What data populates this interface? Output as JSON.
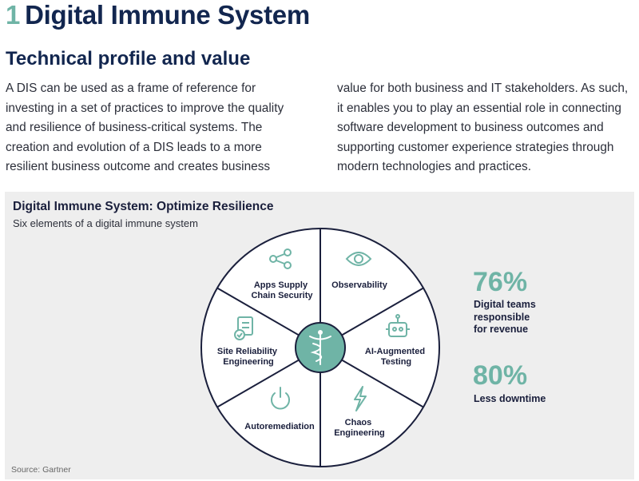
{
  "header": {
    "number": "1",
    "title": "Digital Immune System",
    "subtitle": "Technical profile and value"
  },
  "body": {
    "col1_lines": [
      "A DIS can be used as a frame of reference for",
      "investing in a set of practices to improve the quality",
      "and resilience of business-critical systems. The",
      "creation and evolution of a DIS leads to a more",
      "resilient business outcome and creates business"
    ],
    "col2_lines": [
      "value for both business and IT stakeholders. As such,",
      "it enables you to play an essential role in connecting",
      "software development to business outcomes and",
      "supporting customer experience strategies through",
      "modern technologies and practices."
    ]
  },
  "figure": {
    "title": "Digital Immune System: Optimize Resilience",
    "subtitle": "Six elements of a digital immune system",
    "source": "Source: Gartner",
    "colors": {
      "accent": "#6fb4a6",
      "ring": "#1a1f3c",
      "panel": "#eeeeee"
    },
    "segments": [
      {
        "icon": "share-icon",
        "lines": [
          "Apps Supply",
          "Chain Security"
        ]
      },
      {
        "icon": "eye-icon",
        "lines": [
          "Observability"
        ]
      },
      {
        "icon": "robot-icon",
        "lines": [
          "AI-Augmented",
          "Testing"
        ]
      },
      {
        "icon": "lightning-icon",
        "lines": [
          "Chaos",
          "Engineering"
        ]
      },
      {
        "icon": "power-icon",
        "lines": [
          "Autoremediation"
        ]
      },
      {
        "icon": "checklist-icon",
        "lines": [
          "Site Reliability",
          "Engineering"
        ]
      }
    ],
    "center_icon": "caduceus-icon",
    "stats": [
      {
        "value": "76%",
        "lines": [
          "Digital teams",
          "responsible",
          "for revenue"
        ]
      },
      {
        "value": "80%",
        "lines": [
          "Less downtime"
        ]
      }
    ]
  }
}
